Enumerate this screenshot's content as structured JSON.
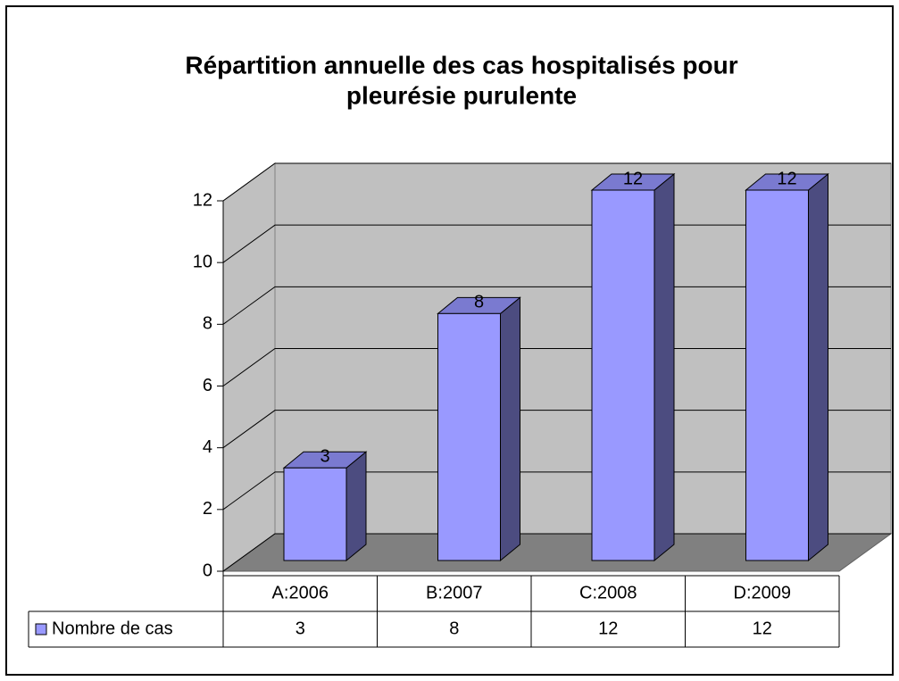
{
  "chart_data": {
    "type": "bar3d",
    "title": [
      "Répartition annuelle des cas hospitalisés pour",
      "pleurésie purulente"
    ],
    "categories": [
      "A:2006",
      "B:2007",
      "C:2008",
      "D:2009"
    ],
    "series": [
      {
        "name": "Nombre de cas",
        "color": "#9999ff",
        "values": [
          3,
          8,
          12,
          12
        ]
      }
    ],
    "ylim": [
      0,
      12
    ],
    "yticks": [
      0,
      2,
      4,
      6,
      8,
      10,
      12
    ],
    "grid": true,
    "data_table": true
  }
}
